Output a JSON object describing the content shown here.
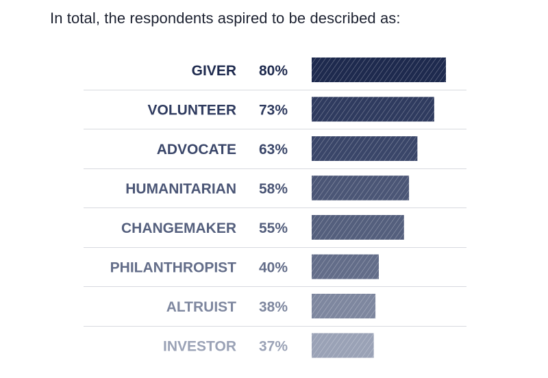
{
  "title": "In total, the respondents aspired to be described as:",
  "chart_data": {
    "type": "bar",
    "orientation": "horizontal",
    "categories": [
      "GIVER",
      "VOLUNTEER",
      "ADVOCATE",
      "HUMANITARIAN",
      "CHANGEMAKER",
      "PHILANTHROPIST",
      "ALTRUIST",
      "INVESTOR"
    ],
    "values": [
      80,
      73,
      63,
      58,
      55,
      40,
      38,
      37
    ],
    "value_labels": [
      "80%",
      "73%",
      "63%",
      "58%",
      "55%",
      "40%",
      "38%",
      "37%"
    ],
    "title": "In total, the respondents aspired to be described as:",
    "xlabel": "",
    "ylabel": "",
    "unit": "%",
    "grid": false,
    "legend": "none",
    "bar_pattern": "diagonal-hatch",
    "colors": [
      "#1e2a4e",
      "#2f3b5f",
      "#3a4669",
      "#4b5676",
      "#545f7d",
      "#636d89",
      "#7e879f",
      "#9aa2b6"
    ]
  }
}
